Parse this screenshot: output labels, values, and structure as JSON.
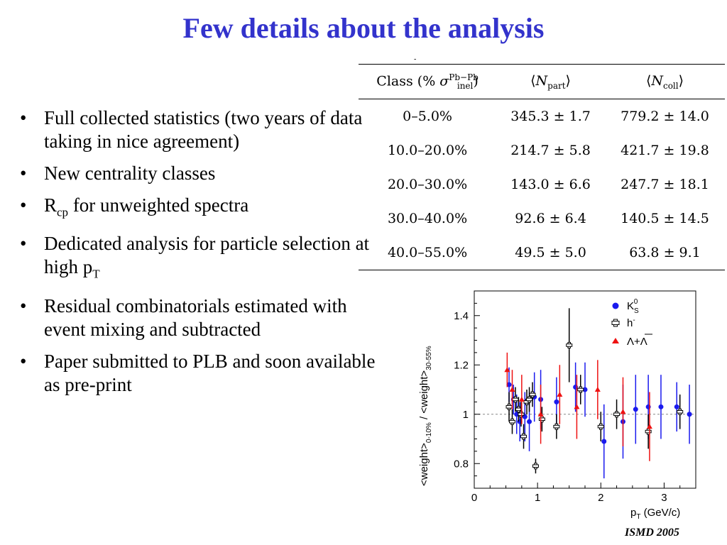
{
  "title": "Few details about the analysis",
  "bullets": [
    {
      "parts": [
        "Full collected statistics (two years of data taking in nice agreement)"
      ]
    },
    {
      "parts": [
        "New centrality classes"
      ]
    },
    {
      "parts": [
        "R",
        {
          "sub": "cp"
        },
        " for unweighted spectra"
      ]
    },
    {
      "parts": [
        "Dedicated analysis for particle selection at high p",
        {
          "sub": "T"
        }
      ]
    },
    {
      "parts": [
        "Residual combinatorials estimated with event mixing and subtracted"
      ]
    },
    {
      "parts": [
        "Paper submitted to PLB and soon available as pre-print"
      ]
    }
  ],
  "table": {
    "tick": "-",
    "headers": {
      "class_label": "Class (%",
      "sigma": "σ",
      "sigma_sup": "Pb−Pb",
      "sigma_sub": "inel",
      "class_close": ")",
      "npart": "N",
      "npart_sub": "part",
      "ncoll": "N",
      "ncoll_sub": "coll"
    },
    "rows": [
      {
        "cls": "0–5.0%",
        "npart": "345.3 ± 1.7",
        "ncoll": "779.2 ± 14.0"
      },
      {
        "cls": "10.0–20.0%",
        "npart": "214.7 ± 5.8",
        "ncoll": "421.7 ± 19.8"
      },
      {
        "cls": "20.0–30.0%",
        "npart": "143.0 ± 6.6",
        "ncoll": "247.7 ± 18.1"
      },
      {
        "cls": "30.0–40.0%",
        "npart": "92.6 ± 6.4",
        "ncoll": "140.5 ± 14.5"
      },
      {
        "cls": "40.0–55.0%",
        "npart": "49.5 ± 5.0",
        "ncoll": "63.8 ± 9.1"
      }
    ]
  },
  "chart_data": {
    "type": "scatter",
    "xlim": [
      0,
      3.5
    ],
    "ylim": [
      0.7,
      1.5
    ],
    "xticks": [
      "0",
      "1",
      "2",
      "3"
    ],
    "yticks": [
      "0.8",
      "1",
      "1.2",
      "1.4"
    ],
    "xtick_values": [
      0,
      1,
      2,
      3
    ],
    "ytick_values": [
      0.8,
      1.0,
      1.2,
      1.4
    ],
    "xlabel": "p",
    "xlabel_sub": "T",
    "xlabel_rest": " (GeV/c)",
    "ylabel_a": "<weight>",
    "ylabel_a_sub": "0-10%",
    "ylabel_mid": " / ",
    "ylabel_b": "<weight>",
    "ylabel_b_sub": "30-55%",
    "reference_line": 1.0,
    "grid": false,
    "legend_position": "top-right",
    "series": [
      {
        "name": "K",
        "name_sub": "S",
        "name_sup": "0",
        "marker": "circle",
        "color": "#1a1aee",
        "points": [
          [
            0.55,
            1.12,
            0.07
          ],
          [
            0.62,
            1.06,
            0.06
          ],
          [
            0.67,
            1.0,
            0.08
          ],
          [
            0.72,
            0.97,
            0.08
          ],
          [
            0.8,
            0.99,
            0.1
          ],
          [
            0.87,
            0.97,
            0.12
          ],
          [
            0.95,
            1.07,
            0.1
          ],
          [
            1.05,
            1.06,
            0.12
          ],
          [
            1.3,
            1.05,
            0.1
          ],
          [
            1.6,
            1.11,
            0.1
          ],
          [
            1.75,
            1.1,
            0.11
          ],
          [
            2.05,
            0.89,
            0.15
          ],
          [
            2.35,
            0.97,
            0.15
          ],
          [
            2.55,
            1.02,
            0.14
          ],
          [
            2.75,
            1.03,
            0.13
          ],
          [
            2.95,
            1.03,
            0.13
          ],
          [
            3.2,
            1.03,
            0.1
          ],
          [
            3.4,
            1.0,
            0.12
          ]
        ]
      },
      {
        "name": "h",
        "name_sup": "-",
        "marker": "open-cross",
        "color": "#000000",
        "points": [
          [
            0.55,
            1.03,
            0.06
          ],
          [
            0.6,
            0.97,
            0.05
          ],
          [
            0.65,
            1.06,
            0.05
          ],
          [
            0.7,
            1.02,
            0.05
          ],
          [
            0.74,
            1.0,
            0.05
          ],
          [
            0.78,
            0.91,
            0.05
          ],
          [
            0.83,
            1.05,
            0.05
          ],
          [
            0.87,
            1.06,
            0.05
          ],
          [
            0.92,
            1.08,
            0.05
          ],
          [
            0.97,
            0.79,
            0.03
          ],
          [
            1.07,
            0.98,
            0.05
          ],
          [
            1.3,
            0.95,
            0.05
          ],
          [
            1.5,
            1.28,
            0.15
          ],
          [
            1.68,
            1.1,
            0.06
          ],
          [
            2.0,
            0.95,
            0.06
          ],
          [
            2.25,
            1.0,
            0.06
          ],
          [
            2.75,
            0.93,
            0.07
          ],
          [
            3.25,
            1.01,
            0.07
          ]
        ]
      },
      {
        "name": "Λ+Λ",
        "name_overline": "Λ",
        "marker": "triangle",
        "color": "#ee1111",
        "points": [
          [
            0.52,
            1.18,
            0.07
          ],
          [
            0.6,
            1.1,
            0.08
          ],
          [
            0.75,
            1.06,
            0.1
          ],
          [
            1.05,
            1.0,
            0.12
          ],
          [
            1.35,
            1.08,
            0.12
          ],
          [
            1.62,
            1.03,
            0.13
          ],
          [
            1.95,
            1.1,
            0.12
          ],
          [
            2.35,
            1.01,
            0.14
          ],
          [
            2.77,
            0.95,
            0.14
          ]
        ]
      }
    ]
  },
  "footer": "ISMD 2005"
}
